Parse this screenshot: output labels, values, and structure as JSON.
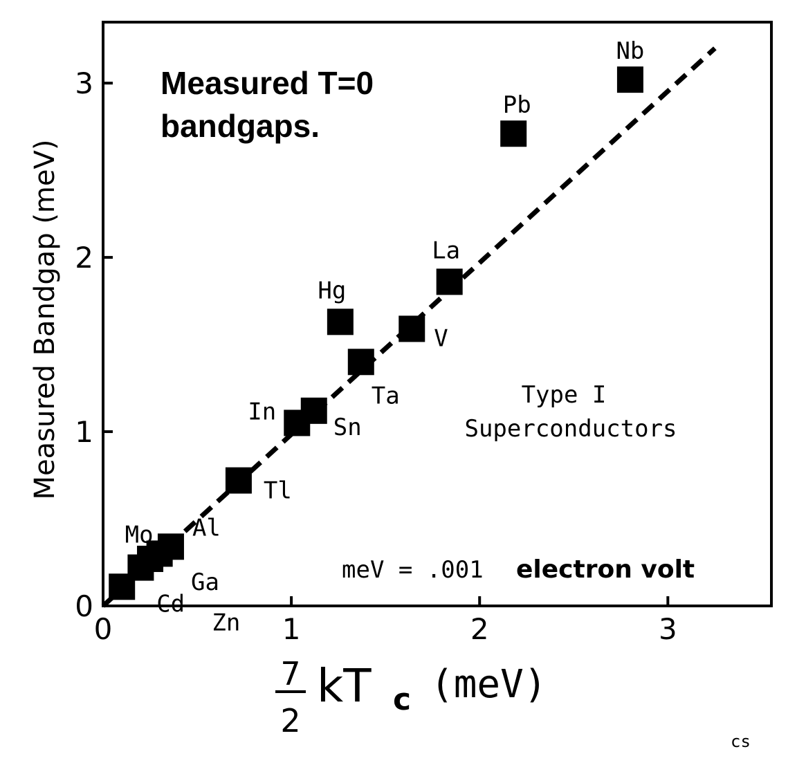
{
  "chart_data": {
    "type": "scatter",
    "title_lines": [
      "Measured T=0",
      "bandgaps."
    ],
    "ylabel": "Measured Bandgap (meV)",
    "xlabel": {
      "frac_num": "7",
      "frac_den": "2",
      "main": "kT",
      "subscript": "c",
      "unit": "(meV)"
    },
    "xlim": [
      0,
      3.55
    ],
    "ylim": [
      0,
      3.35
    ],
    "xticks": [
      0,
      1,
      2,
      3
    ],
    "yticks": [
      0,
      1,
      2,
      3
    ],
    "xtick_labels": [
      "0",
      "1",
      "2",
      "3"
    ],
    "ytick_labels": [
      "0",
      "1",
      "2",
      "3"
    ],
    "grid": false,
    "series": [
      {
        "name": "Type I Superconductors",
        "points": [
          {
            "label": "Cd",
            "x": 0.1,
            "y": 0.11
          },
          {
            "label": "Zn",
            "x": 0.2,
            "y": 0.22
          },
          {
            "label": "Ga",
            "x": 0.25,
            "y": 0.27
          },
          {
            "label": "Mo",
            "x": 0.3,
            "y": 0.3
          },
          {
            "label": "Al",
            "x": 0.36,
            "y": 0.34
          },
          {
            "label": "Tl",
            "x": 0.72,
            "y": 0.72
          },
          {
            "label": "In",
            "x": 1.03,
            "y": 1.05
          },
          {
            "label": "Sn",
            "x": 1.12,
            "y": 1.12
          },
          {
            "label": "Hg",
            "x": 1.26,
            "y": 1.63
          },
          {
            "label": "Ta",
            "x": 1.37,
            "y": 1.4
          },
          {
            "label": "V",
            "x": 1.64,
            "y": 1.59
          },
          {
            "label": "La",
            "x": 1.84,
            "y": 1.86
          },
          {
            "label": "Pb",
            "x": 2.18,
            "y": 2.71
          },
          {
            "label": "Nb",
            "x": 2.8,
            "y": 3.02
          }
        ]
      }
    ],
    "reference_line": {
      "style": "dashed",
      "x": [
        0,
        3.25
      ],
      "y": [
        0,
        3.2
      ]
    },
    "annotations": {
      "type_line1": "Type I",
      "type_line2": "Superconductors",
      "units_prefix": "meV = .001",
      "units_bold": "electron volt"
    },
    "credit": "cs"
  }
}
